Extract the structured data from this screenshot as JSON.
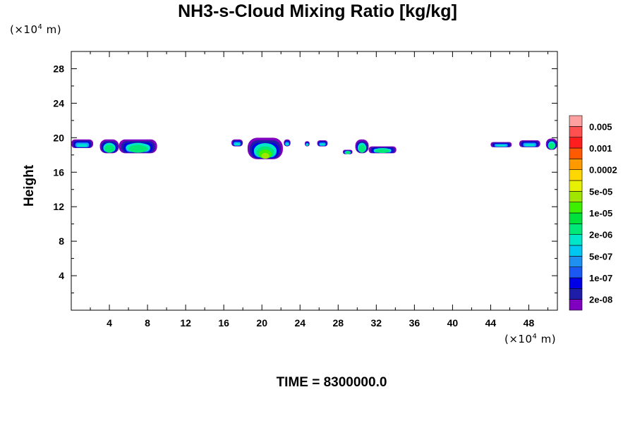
{
  "chart_data": {
    "type": "heatmap",
    "title": "NH3-s-Cloud Mixing Ratio [kg/kg]",
    "ylabel": "Height",
    "y_unit": {
      "prefix": "(×10",
      "exp": "4",
      "suffix": " m)"
    },
    "x_unit": {
      "prefix": "(×10",
      "exp": "4",
      "suffix": " m)"
    },
    "xlim": [
      0,
      51
    ],
    "ylim": [
      0,
      30
    ],
    "x_ticks": [
      4,
      8,
      12,
      16,
      20,
      24,
      28,
      32,
      36,
      40,
      44,
      48
    ],
    "y_ticks": [
      4,
      8,
      12,
      16,
      20,
      24,
      28
    ],
    "colorbar": {
      "colors": [
        "#7f00bf",
        "#1d1da8",
        "#0000e6",
        "#1a5af2",
        "#1e90f0",
        "#00c8f0",
        "#00e6c8",
        "#00e878",
        "#00e13c",
        "#3cf000",
        "#a0e600",
        "#e6f000",
        "#ffd700",
        "#ff9900",
        "#ff5a00",
        "#ff1e1e",
        "#ff5050",
        "#ffa0a0"
      ],
      "labels": [
        "2e-08",
        "1e-07",
        "5e-07",
        "2e-06",
        "1e-05",
        "5e-05",
        "0.0002",
        "0.001",
        "0.005"
      ]
    },
    "cloud_blobs": [
      {
        "x0": 0.0,
        "x1": 2.3,
        "ytop": 19.8,
        "ybot": 18.8,
        "core": 0
      },
      {
        "x0": 3.0,
        "x1": 5.0,
        "ytop": 19.8,
        "ybot": 18.2,
        "core": 1
      },
      {
        "x0": 5.0,
        "x1": 9.0,
        "ytop": 19.8,
        "ybot": 18.2,
        "core": 1
      },
      {
        "x0": 16.8,
        "x1": 18.0,
        "ytop": 19.8,
        "ybot": 19.0,
        "core": 0
      },
      {
        "x0": 18.5,
        "x1": 22.2,
        "ytop": 20.0,
        "ybot": 17.5,
        "core": 3
      },
      {
        "x0": 22.3,
        "x1": 23.0,
        "ytop": 19.8,
        "ybot": 19.0,
        "core": 0
      },
      {
        "x0": 24.5,
        "x1": 25.0,
        "ytop": 19.6,
        "ybot": 19.0,
        "core": 0
      },
      {
        "x0": 25.8,
        "x1": 26.9,
        "ytop": 19.7,
        "ybot": 19.0,
        "core": 0
      },
      {
        "x0": 28.5,
        "x1": 29.5,
        "ytop": 18.6,
        "ybot": 18.1,
        "core": 1
      },
      {
        "x0": 29.8,
        "x1": 31.2,
        "ytop": 19.8,
        "ybot": 18.2,
        "core": 1
      },
      {
        "x0": 31.2,
        "x1": 34.1,
        "ytop": 19.0,
        "ybot": 18.2,
        "core": 1
      },
      {
        "x0": 44.0,
        "x1": 46.2,
        "ytop": 19.5,
        "ybot": 18.9,
        "core": 0
      },
      {
        "x0": 47.0,
        "x1": 49.2,
        "ytop": 19.7,
        "ybot": 18.9,
        "core": 0
      },
      {
        "x0": 49.8,
        "x1": 51.0,
        "ytop": 19.9,
        "ybot": 18.6,
        "core": 1
      }
    ],
    "time_label": "TIME = 8300000.0"
  }
}
